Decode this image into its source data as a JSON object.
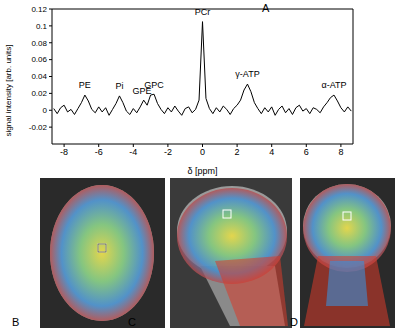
{
  "chart_data": {
    "type": "line",
    "panel_label": "A",
    "x_label": "δ [ppm]",
    "y_label": "signal intensity [arb. units]",
    "color": "#000000",
    "grid": false,
    "xlim": [
      -8.7,
      8.7
    ],
    "xticks": [
      -8,
      -6,
      -4,
      -2,
      0,
      2,
      4,
      6,
      8
    ],
    "ylim": [
      -0.04,
      0.12
    ],
    "yticks": [
      -0.02,
      0,
      0.02,
      0.04,
      0.06,
      0.08,
      0.1,
      0.12
    ],
    "x": [
      -8.6,
      -8.4,
      -8.2,
      -8.0,
      -7.8,
      -7.6,
      -7.4,
      -7.2,
      -7.0,
      -6.8,
      -6.6,
      -6.4,
      -6.2,
      -6.0,
      -5.8,
      -5.6,
      -5.4,
      -5.2,
      -5.0,
      -4.8,
      -4.6,
      -4.4,
      -4.2,
      -4.0,
      -3.8,
      -3.6,
      -3.4,
      -3.2,
      -3.0,
      -2.8,
      -2.6,
      -2.4,
      -2.2,
      -2.0,
      -1.8,
      -1.6,
      -1.4,
      -1.2,
      -1.0,
      -0.8,
      -0.6,
      -0.4,
      -0.2,
      0.0,
      0.2,
      0.4,
      0.6,
      0.8,
      1.0,
      1.2,
      1.4,
      1.6,
      1.8,
      2.0,
      2.2,
      2.4,
      2.6,
      2.8,
      3.0,
      3.2,
      3.4,
      3.6,
      3.8,
      4.0,
      4.2,
      4.4,
      4.6,
      4.8,
      5.0,
      5.2,
      5.4,
      5.6,
      5.8,
      6.0,
      6.2,
      6.4,
      6.6,
      6.8,
      7.0,
      7.2,
      7.4,
      7.6,
      7.8,
      8.0,
      8.2,
      8.4,
      8.6
    ],
    "values": [
      0.002,
      -0.004,
      0.003,
      0.006,
      -0.002,
      0.001,
      -0.005,
      0.002,
      0.009,
      0.018,
      0.011,
      0.001,
      -0.003,
      0.004,
      -0.002,
      0.003,
      -0.006,
      0.001,
      0.008,
      0.017,
      0.009,
      -0.001,
      -0.005,
      0.002,
      -0.003,
      0.004,
      0.012,
      0.006,
      0.018,
      0.019,
      0.008,
      0.001,
      -0.004,
      0.003,
      -0.002,
      0.005,
      -0.001,
      -0.006,
      0.002,
      0.004,
      -0.003,
      0.001,
      0.012,
      0.105,
      0.014,
      0.002,
      -0.004,
      0.003,
      -0.002,
      0.005,
      0.001,
      -0.005,
      0.002,
      0.006,
      0.012,
      0.024,
      0.031,
      0.022,
      0.009,
      0.002,
      -0.004,
      0.003,
      -0.002,
      0.004,
      -0.006,
      0.001,
      0.005,
      -0.003,
      0.002,
      -0.005,
      0.003,
      0.006,
      -0.001,
      0.002,
      -0.004,
      0.003,
      0.001,
      -0.003,
      0.004,
      0.009,
      0.015,
      0.018,
      0.011,
      0.003,
      -0.002,
      0.004,
      -0.001
    ],
    "annotations": [
      {
        "text": "PE",
        "x": -6.8,
        "y": 0.02
      },
      {
        "text": "Pi",
        "x": -4.8,
        "y": 0.019
      },
      {
        "text": "GPE",
        "x": -3.5,
        "y": 0.013
      },
      {
        "text": "GPC",
        "x": -2.8,
        "y": 0.021
      },
      {
        "text": "PCr",
        "x": 0.0,
        "y": 0.107
      },
      {
        "text": "γ-ATP",
        "x": 2.6,
        "y": 0.033
      },
      {
        "text": "α-ATP",
        "x": 7.6,
        "y": 0.02
      }
    ]
  },
  "panels": [
    "B",
    "C",
    "D"
  ]
}
